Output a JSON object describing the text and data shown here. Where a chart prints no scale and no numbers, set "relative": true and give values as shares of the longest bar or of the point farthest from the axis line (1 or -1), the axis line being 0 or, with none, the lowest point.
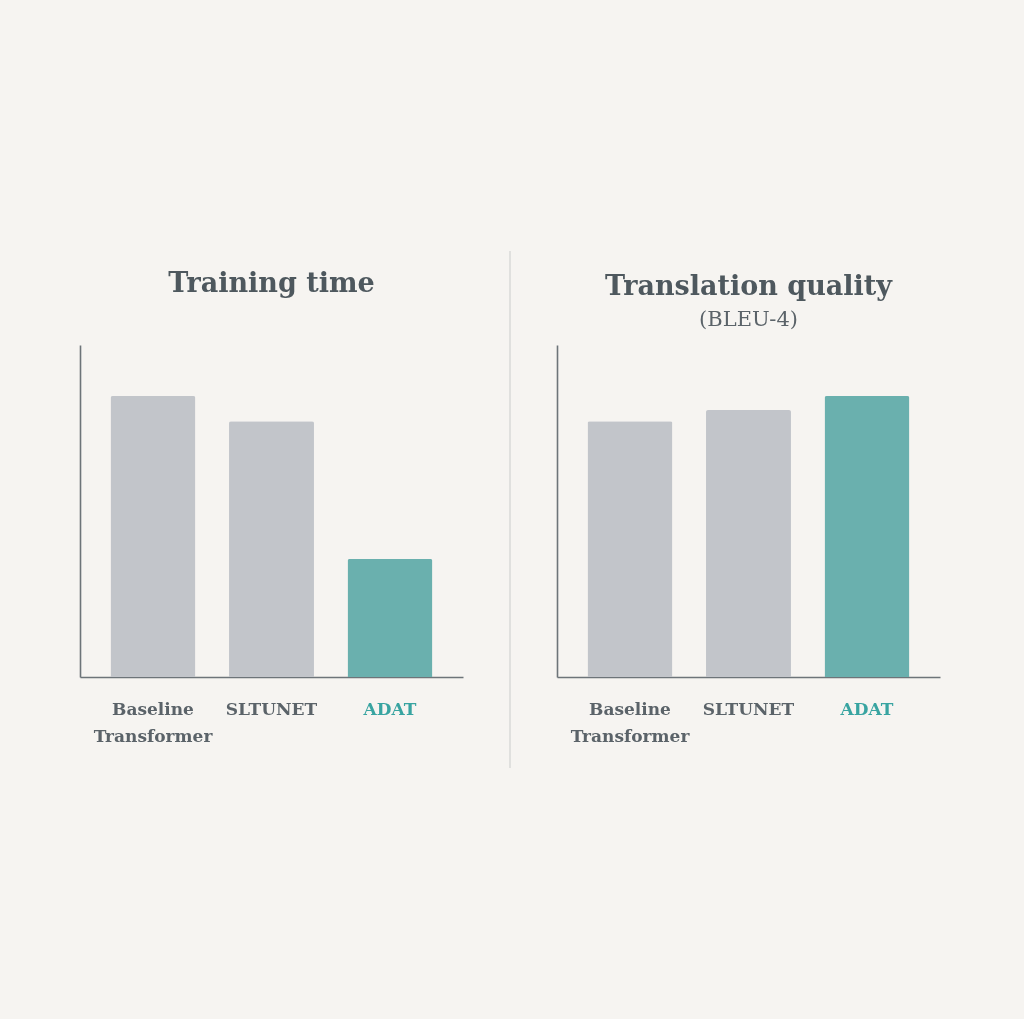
{
  "chart_data": [
    {
      "type": "bar",
      "title": "Training time",
      "categories": [
        "Baseline Transformer",
        "SLTUNET",
        "ADAT"
      ],
      "values": [
        1,
        0.91,
        0.42
      ],
      "colors": [
        "#c2c5ca",
        "#c2c5ca",
        "#6ab0ae"
      ],
      "relative": true,
      "tick_labels": "x"
    },
    {
      "type": "bar",
      "title": "Translation quality",
      "subtitle": "(BLEU-4)",
      "categories": [
        "Baseline Transformer",
        "SLTUNET",
        "ADAT"
      ],
      "values": [
        0.91,
        0.95,
        1
      ],
      "colors": [
        "#c2c5ca",
        "#c2c5ca",
        "#6ab0ae"
      ],
      "relative": true,
      "tick_labels": "x"
    }
  ]
}
